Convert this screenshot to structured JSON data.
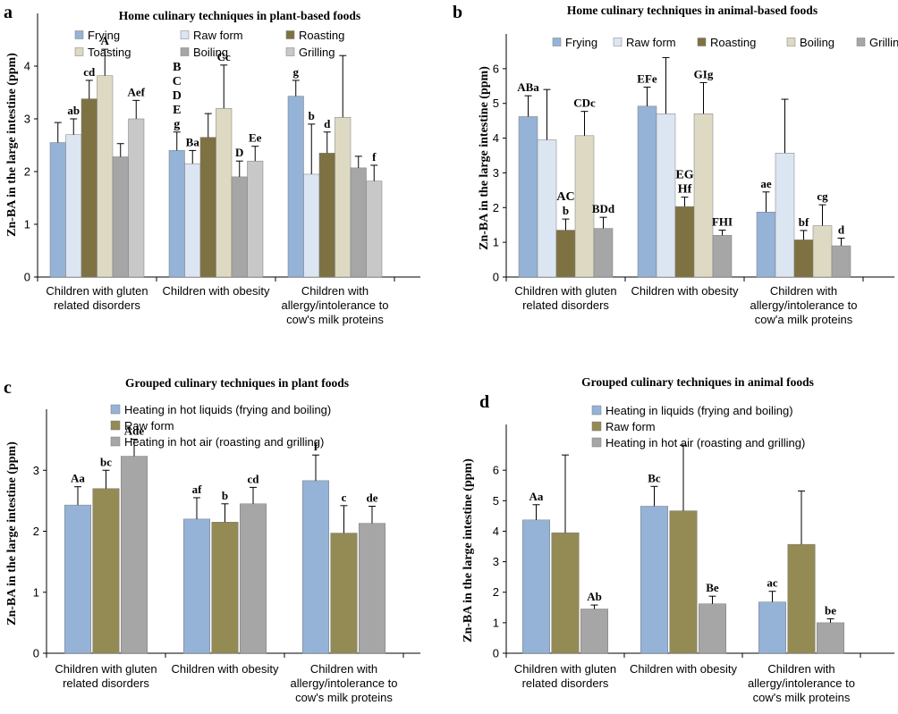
{
  "panel_letters": [
    "a",
    "b",
    "c",
    "d"
  ],
  "chart_data": [
    {
      "type": "bar",
      "title": "Home culinary techniques in plant-based foods",
      "ylabel": "Zn-BA in the large intestine (ppm)",
      "xlabel": "",
      "ylim": [
        0,
        5
      ],
      "yticks": [
        0,
        1,
        2,
        3,
        4
      ],
      "legend_columns": 3,
      "legend_position": "top",
      "categories": [
        [
          "Children with gluten",
          "related disorders"
        ],
        [
          "Children with obesity"
        ],
        [
          "Children with",
          "allergy/intolerance to",
          "cow's milk proteins"
        ]
      ],
      "series": [
        {
          "name": "Frying",
          "color": "#95b3d7",
          "values": [
            2.55,
            2.4,
            3.43
          ],
          "errors": [
            0.38,
            0.35,
            0.3
          ],
          "labels": [
            "",
            "",
            "g"
          ]
        },
        {
          "name": "Raw form",
          "color": "#dce6f2",
          "values": [
            2.7,
            2.15,
            1.95
          ],
          "errors": [
            0.3,
            0.25,
            0.95
          ],
          "labels": [
            "ab",
            "Ba",
            "b"
          ]
        },
        {
          "name": "Roasting",
          "color": "#7f7242",
          "values": [
            3.38,
            2.65,
            2.35
          ],
          "errors": [
            0.35,
            0.45,
            0.4
          ],
          "labels": [
            "cd",
            "",
            "d"
          ]
        },
        {
          "name": "Toasting",
          "color": "#ddd9c3",
          "values": [
            3.82,
            3.2,
            3.03
          ],
          "errors": [
            0.5,
            0.82,
            1.17
          ],
          "labels": [
            "A",
            "Cc",
            ""
          ]
        },
        {
          "name": "Boiling",
          "color": "#a6a6a6",
          "values": [
            2.28,
            1.9,
            2.07
          ],
          "errors": [
            0.25,
            0.3,
            0.22
          ],
          "labels": [
            "",
            "D",
            ""
          ]
        },
        {
          "name": "Grilling",
          "color": "#c8c8c8",
          "values": [
            3.0,
            2.2,
            1.82
          ],
          "errors": [
            0.35,
            0.28,
            0.3
          ],
          "labels": [
            "Aef",
            "Ee",
            "f"
          ]
        }
      ],
      "annotations": [
        {
          "text": [
            "B",
            "C",
            "D",
            "E",
            "g"
          ],
          "group": 1,
          "series": 0
        }
      ]
    },
    {
      "type": "bar",
      "title": "Home culinary techniques in animal-based foods",
      "ylabel": "Zn-BA in the large intestine (ppm)",
      "xlabel": "",
      "ylim": [
        0,
        7
      ],
      "yticks": [
        0,
        1,
        2,
        3,
        4,
        5,
        6
      ],
      "legend_columns": 5,
      "legend_position": "top",
      "categories": [
        [
          "Children with gluten",
          "related disorders"
        ],
        [
          "Children with obesity"
        ],
        [
          "Children with",
          "allergy/intolerance to",
          "cow'a milk proteins"
        ]
      ],
      "series": [
        {
          "name": "Frying",
          "color": "#95b3d7",
          "values": [
            4.62,
            4.92,
            1.87
          ],
          "errors": [
            0.6,
            0.55,
            0.58
          ],
          "labels": [
            "ABa",
            "EFe",
            "ae"
          ]
        },
        {
          "name": "Raw form",
          "color": "#dce6f2",
          "values": [
            3.95,
            4.7,
            3.57
          ],
          "errors": [
            1.45,
            1.62,
            1.55
          ],
          "labels": [
            "",
            "",
            ""
          ]
        },
        {
          "name": "Roasting",
          "color": "#7f7242",
          "values": [
            1.35,
            2.03,
            1.07
          ],
          "errors": [
            0.32,
            0.27,
            0.27
          ],
          "labels": [
            "b",
            "",
            "bf"
          ]
        },
        {
          "name": "Boiling",
          "color": "#ddd9c3",
          "values": [
            4.07,
            4.7,
            1.48
          ],
          "errors": [
            0.7,
            0.9,
            0.6
          ],
          "labels": [
            "CDc",
            "GIg",
            "cg"
          ]
        },
        {
          "name": "Grilling",
          "color": "#a6a6a6",
          "values": [
            1.4,
            1.2,
            0.9
          ],
          "errors": [
            0.32,
            0.15,
            0.22
          ],
          "labels": [
            "BDd",
            "FHI",
            "d"
          ]
        }
      ],
      "annotations": [
        {
          "text": [
            "AC"
          ],
          "group": 0,
          "series": 2
        },
        {
          "text": [
            "EG",
            "Hf"
          ],
          "group": 1,
          "series": 2
        }
      ]
    },
    {
      "type": "bar",
      "title": "Grouped  culinary techniques in plant foods",
      "ylabel": "Zn-BA in the large intestine (ppm)",
      "xlabel": "",
      "ylim": [
        0,
        4
      ],
      "yticks": [
        0,
        1,
        2,
        3
      ],
      "legend_columns": 1,
      "legend_position": "top",
      "categories": [
        [
          "Children with gluten",
          "related disorders"
        ],
        [
          "Children with obesity"
        ],
        [
          "Children with",
          "allergy/intolerance to",
          "cow's milk proteins"
        ]
      ],
      "series": [
        {
          "name": "Heating in hot liquids (frying and boiling)",
          "color": "#95b3d7",
          "values": [
            2.43,
            2.2,
            2.83
          ],
          "errors": [
            0.3,
            0.35,
            0.42
          ],
          "labels": [
            "Aa",
            "af",
            "f"
          ]
        },
        {
          "name": "Raw form",
          "color": "#948a54",
          "values": [
            2.7,
            2.15,
            1.97
          ],
          "errors": [
            0.3,
            0.3,
            0.45
          ],
          "labels": [
            "bc",
            "b",
            "c"
          ]
        },
        {
          "name": "Heating in hot air (roasting and grilling)",
          "color": "#a6a6a6",
          "values": [
            3.23,
            2.45,
            2.13
          ],
          "errors": [
            0.28,
            0.27,
            0.28
          ],
          "labels": [
            "Ade",
            "cd",
            "de"
          ]
        }
      ],
      "annotations": []
    },
    {
      "type": "bar",
      "title": "Grouped culinary techniques in animal foods",
      "ylabel": "Zn-BA in the large intestine (ppm)",
      "xlabel": "",
      "ylim": [
        0,
        7.5
      ],
      "yticks": [
        0,
        1,
        2,
        3,
        4,
        5,
        6
      ],
      "legend_columns": 1,
      "legend_position": "top",
      "categories": [
        [
          "Children with gluten",
          "related disorders"
        ],
        [
          "Children with obesity"
        ],
        [
          "Children with",
          "allergy/intolerance to",
          "cow's milk proteins"
        ]
      ],
      "series": [
        {
          "name": "Heating in liquids (frying and boiling)",
          "color": "#95b3d7",
          "values": [
            4.37,
            4.82,
            1.68
          ],
          "errors": [
            0.5,
            0.65,
            0.35
          ],
          "labels": [
            "Aa",
            "Bc",
            "ac"
          ]
        },
        {
          "name": "Raw form",
          "color": "#948a54",
          "values": [
            3.95,
            4.67,
            3.57
          ],
          "errors": [
            2.55,
            2.15,
            1.75
          ],
          "labels": [
            "",
            "",
            ""
          ]
        },
        {
          "name": "Heating in hot air (roasting and grilling)",
          "color": "#a6a6a6",
          "values": [
            1.45,
            1.62,
            1.0
          ],
          "errors": [
            0.13,
            0.25,
            0.13
          ],
          "labels": [
            "Ab",
            "Be",
            "be"
          ]
        }
      ],
      "annotations": []
    }
  ]
}
